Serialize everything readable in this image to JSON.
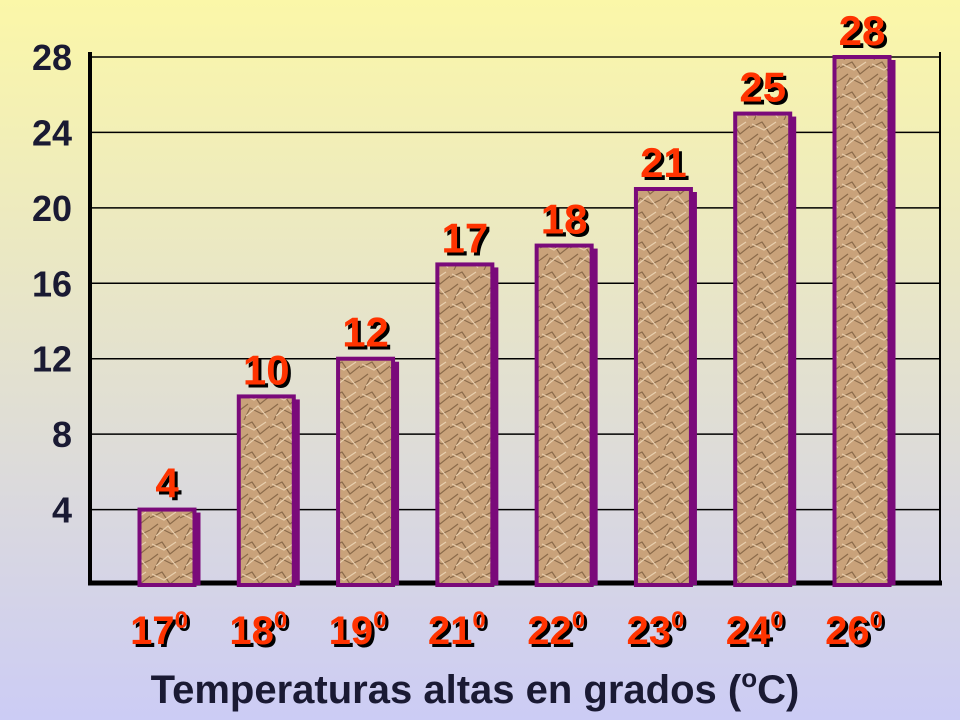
{
  "chart_data": {
    "type": "bar",
    "categories": [
      "17",
      "18",
      "19",
      "21",
      "22",
      "23",
      "24",
      "26"
    ],
    "category_superscript": "0",
    "values": [
      4,
      10,
      12,
      17,
      18,
      21,
      25,
      28
    ],
    "xlabel": {
      "text": "Temperaturas altas en grados (",
      "superscript": "o",
      "end": "C)"
    },
    "ylim": [
      0,
      28
    ],
    "yticks": [
      4,
      8,
      12,
      16,
      20,
      24,
      28
    ],
    "grid": true,
    "color": "#c9a27a",
    "edge_color": "#7a0a7a",
    "label_color": "#ff3300"
  }
}
